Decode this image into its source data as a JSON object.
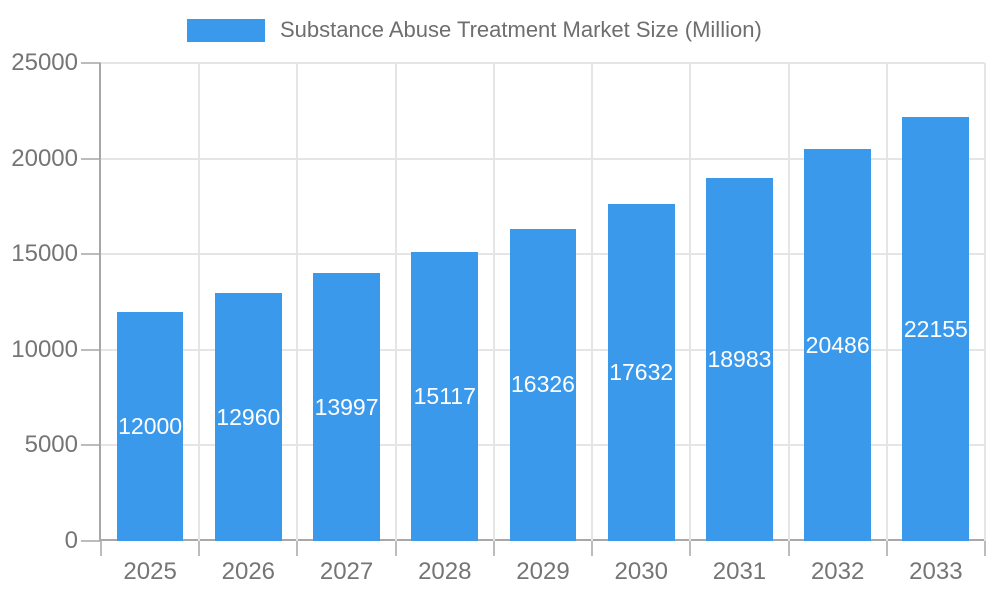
{
  "chart_data": {
    "type": "bar",
    "legend": {
      "label": "Substance Abuse Treatment Market Size (Million)",
      "position": "top"
    },
    "categories": [
      "2025",
      "2026",
      "2027",
      "2028",
      "2029",
      "2030",
      "2031",
      "2032",
      "2033"
    ],
    "values": [
      12000,
      12960,
      13997,
      15117,
      16326,
      17632,
      18983,
      20486,
      22155
    ],
    "data_labels": [
      "12000",
      "12960",
      "13997",
      "15117",
      "16326",
      "17632",
      "18983",
      "20486",
      "22155"
    ],
    "ylim": [
      0,
      25000
    ],
    "yticks": [
      0,
      5000,
      10000,
      15000,
      20000,
      25000
    ],
    "grid": true,
    "colors": {
      "bar": "#3B99EC",
      "data_label": "#FFFFFF",
      "axis_line": "#A8A8A8",
      "gridline": "#E5E5E5",
      "tick_mark": "#BCBCBC",
      "axis_text": "#757575",
      "legend_text": "#6E6E6E"
    }
  }
}
